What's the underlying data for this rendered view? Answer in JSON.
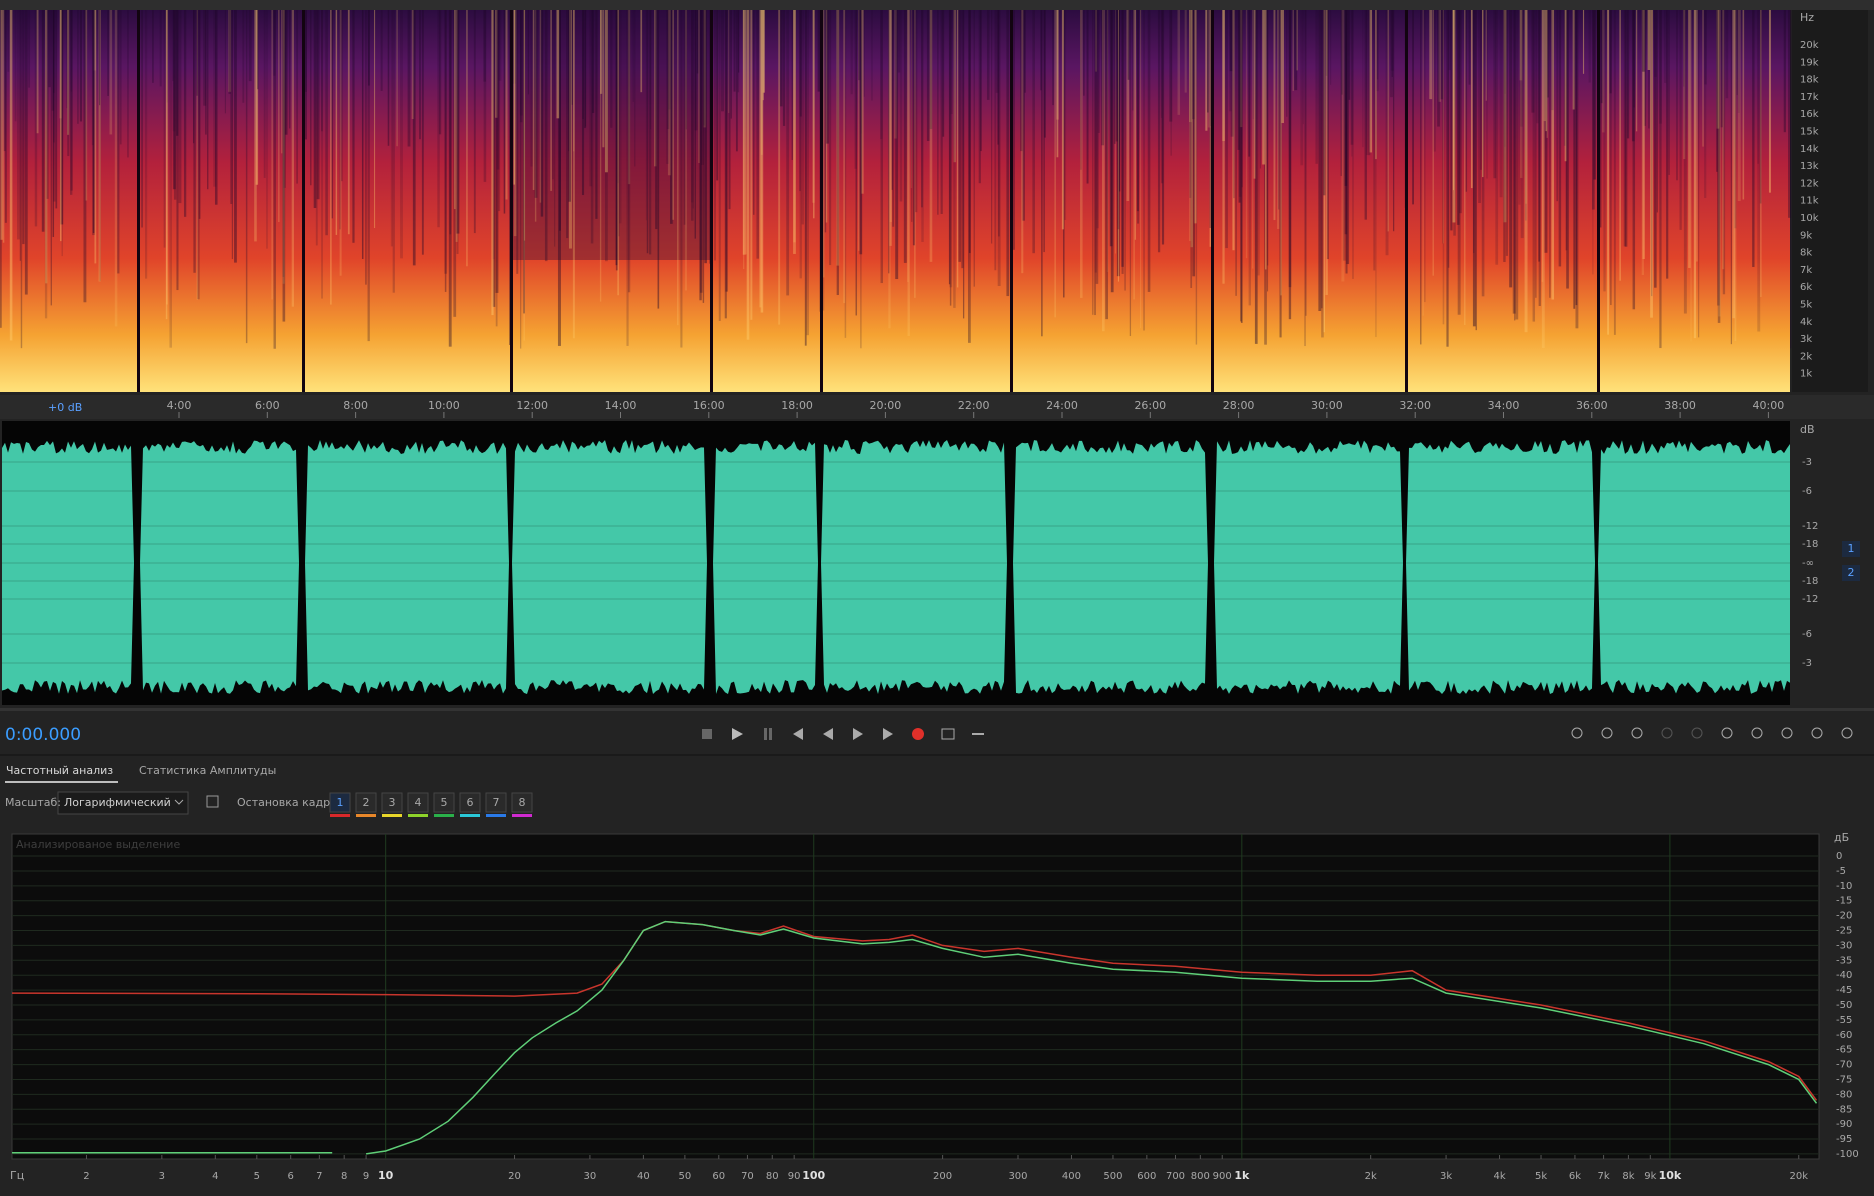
{
  "spectrogram": {
    "unit": "Hz",
    "freq_labels": [
      "20k",
      "19k",
      "18k",
      "17k",
      "16k",
      "15k",
      "14k",
      "13k",
      "12k",
      "11k",
      "10k",
      "9k",
      "8k",
      "7k",
      "6k",
      "5k",
      "4k",
      "3k",
      "2k",
      "1k"
    ]
  },
  "timeline": {
    "level": "+0 dB",
    "time_labels": [
      "4:00",
      "6:00",
      "8:00",
      "10:00",
      "12:00",
      "14:00",
      "16:00",
      "18:00",
      "20:00",
      "22:00",
      "24:00",
      "26:00",
      "28:00",
      "30:00",
      "32:00",
      "34:00",
      "36:00",
      "38:00",
      "40:00"
    ]
  },
  "waveform": {
    "unit": "dB",
    "db_labels": [
      "-3",
      "-6",
      "-12",
      "-18",
      "-∞",
      "-18",
      "-12",
      "-6",
      "-3"
    ],
    "channels": [
      "1",
      "2"
    ]
  },
  "transport": {
    "timecode": "0:00.000"
  },
  "tabs": [
    "Частотный анализ",
    "Статистика Амплитуды"
  ],
  "controls": {
    "scale_label": "Масштаб:",
    "scale_value": "Логарифмический",
    "freeze_label": "Остановка кадра:",
    "freeze_slots": [
      {
        "label": "1",
        "color": "#d8282a"
      },
      {
        "label": "2",
        "color": "#e8872a"
      },
      {
        "label": "3",
        "color": "#e8d62a"
      },
      {
        "label": "4",
        "color": "#8ed32a"
      },
      {
        "label": "5",
        "color": "#2ab04a"
      },
      {
        "label": "6",
        "color": "#2ac8d8"
      },
      {
        "label": "7",
        "color": "#2a7ae8"
      },
      {
        "label": "8",
        "color": "#d02ad0"
      }
    ]
  },
  "chart_data": {
    "type": "line",
    "annotation": "Анализированое выделение",
    "x_label": "Гц",
    "y_label": "дБ",
    "xscale": "log",
    "grid": true,
    "xlim": [
      1.34,
      22300
    ],
    "ylim": [
      -101.7,
      7.4
    ],
    "xticks": [
      2,
      3,
      4,
      5,
      6,
      7,
      8,
      9,
      10,
      20,
      30,
      40,
      50,
      60,
      70,
      80,
      90,
      100,
      200,
      300,
      400,
      500,
      600,
      700,
      800,
      900,
      {
        "value": 1000,
        "label": "1k"
      },
      {
        "value": 2000,
        "label": "2k"
      },
      {
        "value": 3000,
        "label": "3k"
      },
      {
        "value": 4000,
        "label": "4k"
      },
      {
        "value": 5000,
        "label": "5k"
      },
      {
        "value": 6000,
        "label": "6k"
      },
      {
        "value": 7000,
        "label": "7k"
      },
      {
        "value": 8000,
        "label": "8k"
      },
      {
        "value": 9000,
        "label": "9k"
      },
      {
        "value": 10000,
        "label": "10k"
      },
      {
        "value": 20000,
        "label": "20k"
      }
    ],
    "yticks": [
      0,
      -5,
      -10,
      -15,
      -20,
      -25,
      -30,
      -35,
      -40,
      -45,
      -50,
      -55,
      -60,
      -65,
      -70,
      -75,
      -80,
      -85,
      -90,
      -95,
      -100
    ],
    "series": [
      {
        "color": "#c8352c",
        "x": [
          1.34,
          5,
          10,
          20,
          28,
          32,
          36,
          40,
          45,
          55,
          65,
          75,
          85,
          100,
          130,
          150,
          170,
          200,
          250,
          300,
          400,
          500,
          700,
          1000,
          1500,
          2000,
          2500,
          3000,
          5000,
          8000,
          12000,
          17000,
          20000,
          22000
        ],
        "values": [
          -46,
          -46.2,
          -46.5,
          -47,
          -46,
          -43,
          -35,
          -25,
          -22,
          -23,
          -25,
          -26,
          -23.5,
          -27,
          -28.5,
          -28,
          -26.5,
          -30,
          -32,
          -31,
          -34,
          -36,
          -37,
          -39,
          -40,
          -40,
          -38.5,
          -45,
          -50,
          -56,
          -62,
          -69,
          -74,
          -82
        ]
      },
      {
        "color": "#5fcf78",
        "x": [
          1.34,
          7.5,
          null,
          9,
          10,
          12,
          14,
          16,
          18,
          20,
          22,
          25,
          28,
          32,
          36,
          40,
          45,
          55,
          65,
          75,
          85,
          100,
          130,
          150,
          170,
          200,
          250,
          300,
          400,
          500,
          700,
          1000,
          1500,
          2000,
          2500,
          3000,
          5000,
          8000,
          12000,
          17000,
          20000,
          22000
        ],
        "values": [
          -99.6,
          -99.6,
          null,
          -100,
          -99,
          -95,
          -89,
          -81,
          -73,
          -66,
          -61,
          -56,
          -52,
          -45,
          -35,
          -25,
          -22,
          -23,
          -25,
          -26.5,
          -24.5,
          -27.5,
          -29.5,
          -29,
          -28,
          -31,
          -34,
          -33,
          -36,
          -38,
          -39,
          -41,
          -42,
          -42,
          -41,
          -46,
          -51,
          -57,
          -63,
          -70,
          -75,
          -83
        ]
      }
    ]
  }
}
